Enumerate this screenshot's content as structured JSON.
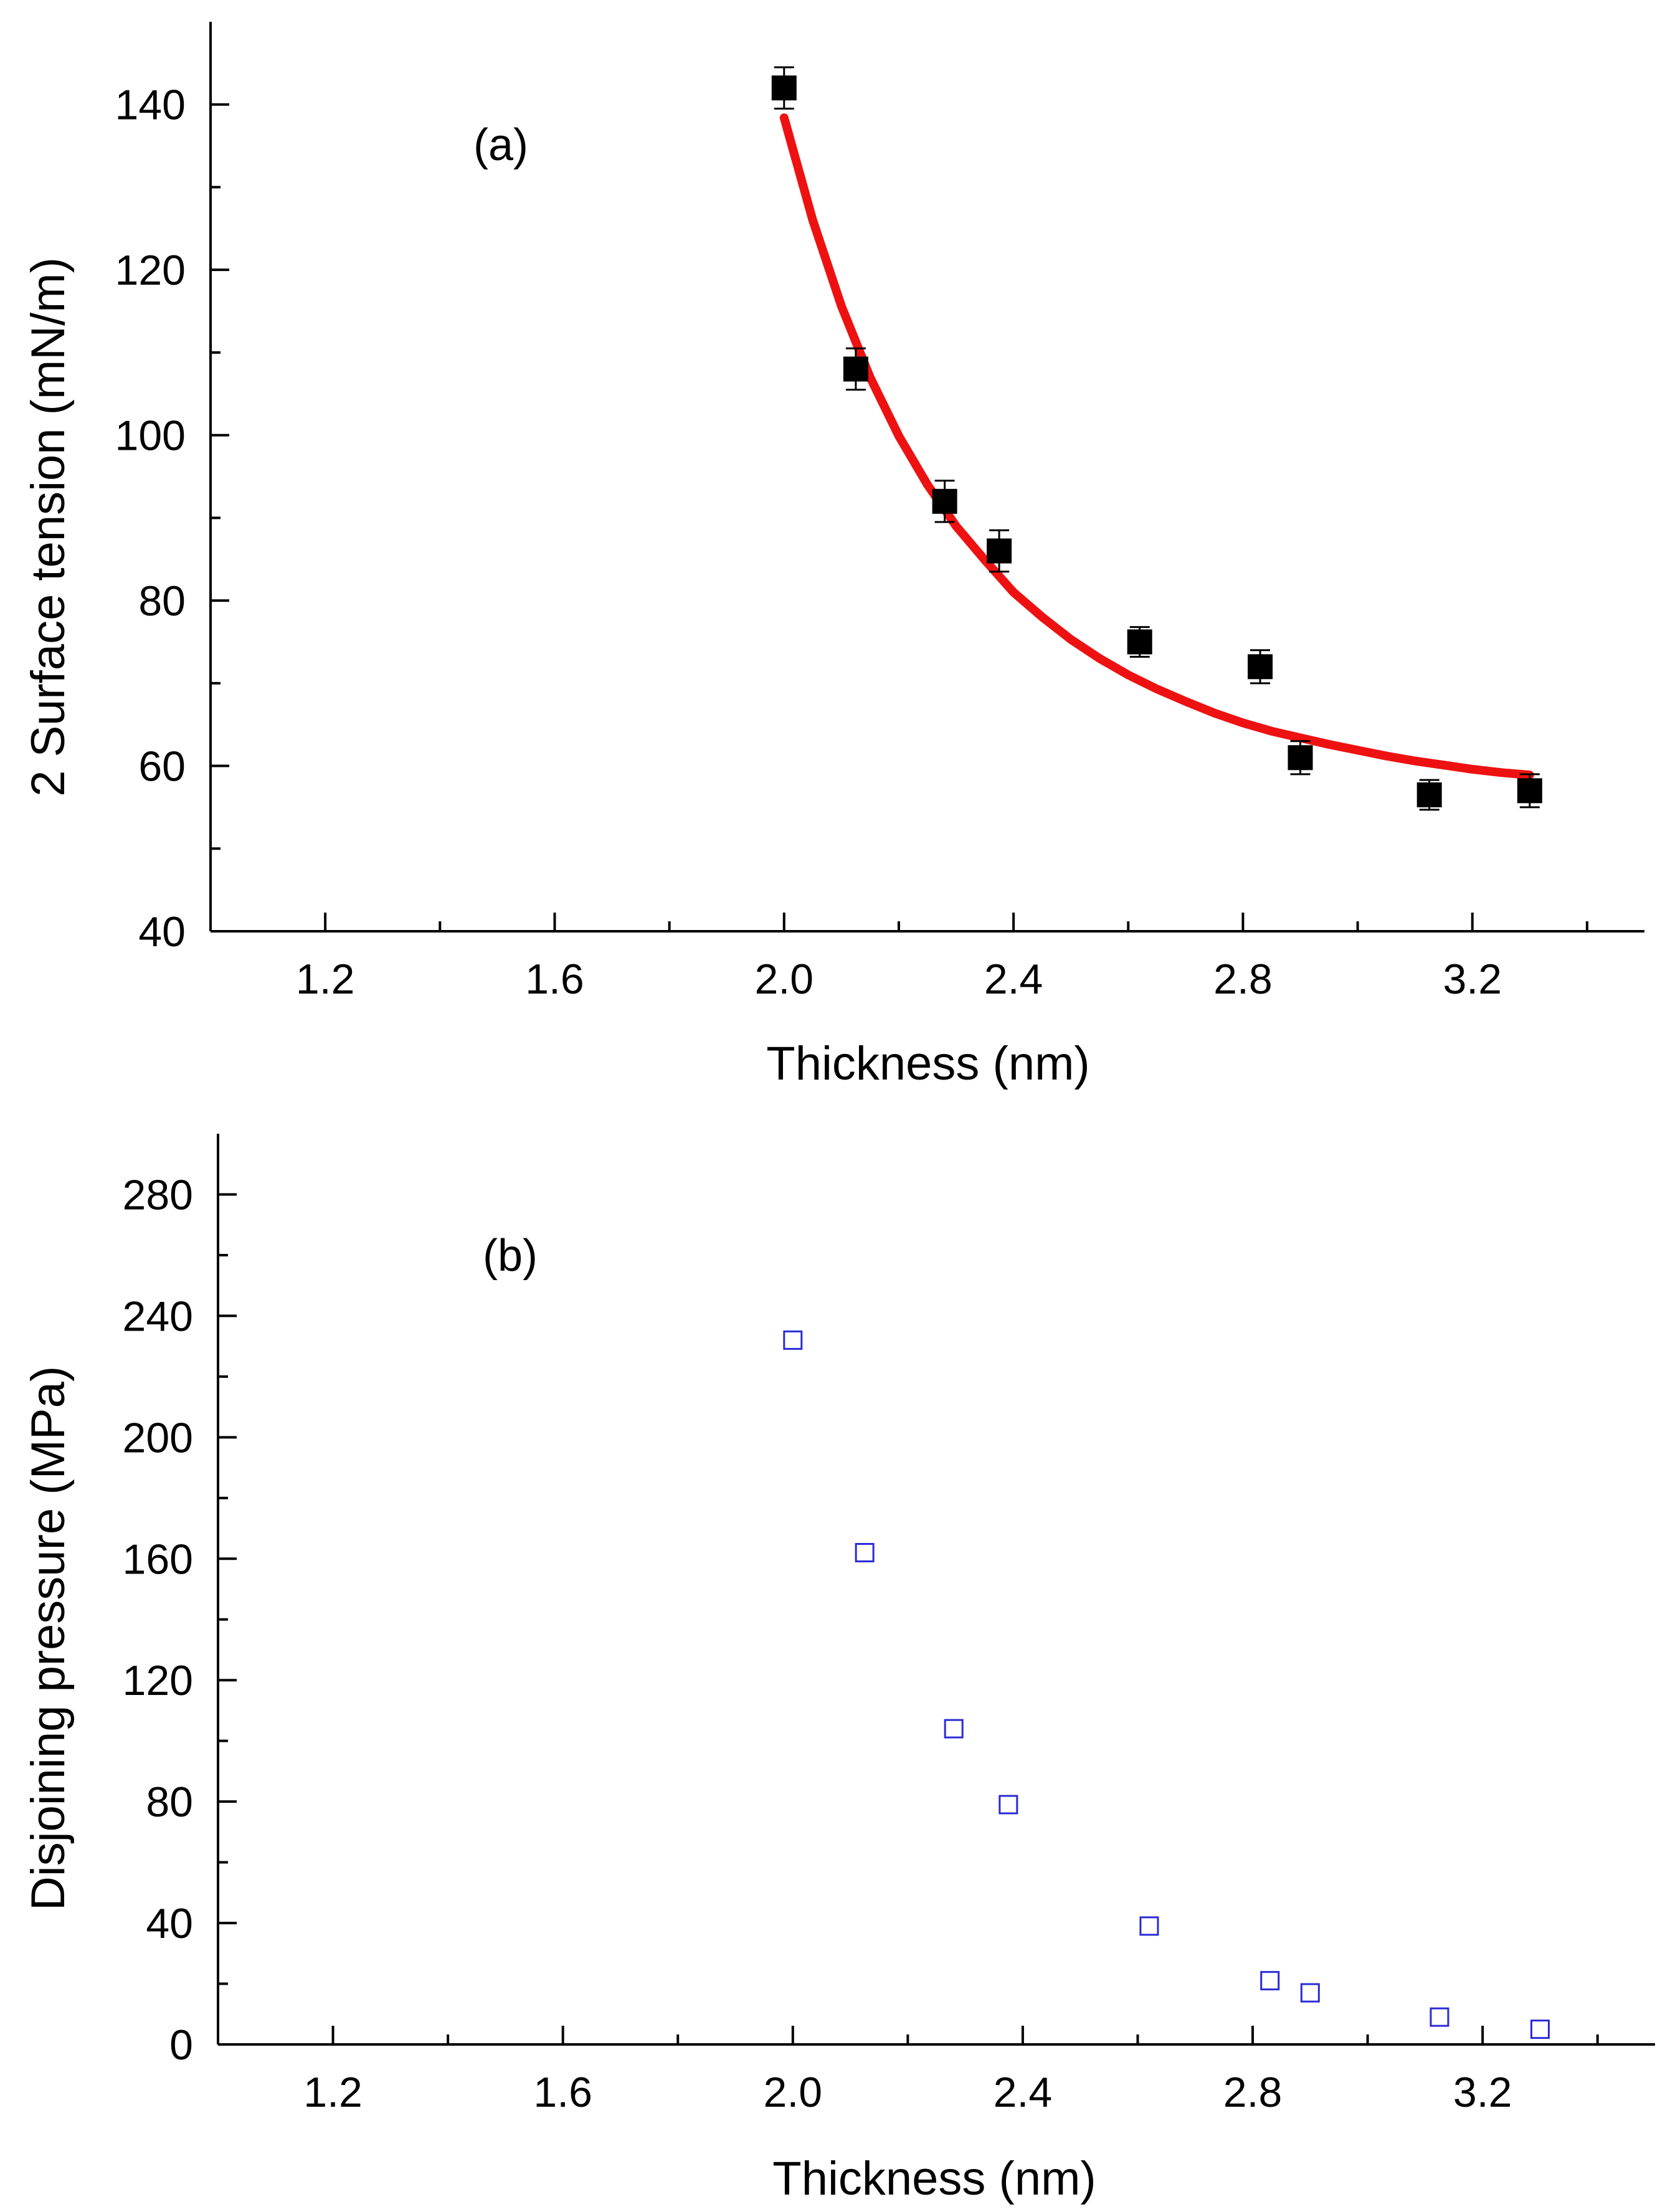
{
  "chart_data": [
    {
      "type": "scatter",
      "panel_label": "(a)",
      "xlabel": "Thickness (nm)",
      "ylabel": "2 Surface tension (mN/m)",
      "xlim": [
        1.0,
        3.5
      ],
      "ylim": [
        40,
        150
      ],
      "xticks": [
        1.2,
        1.6,
        2.0,
        2.4,
        2.8,
        3.2
      ],
      "xtick_labels": [
        "1.2",
        "1.6",
        "2.0",
        "2.4",
        "2.8",
        "3.2"
      ],
      "yticks": [
        40,
        60,
        80,
        100,
        120,
        140
      ],
      "ytick_labels": [
        "40",
        "60",
        "80",
        "100",
        "120",
        "140"
      ],
      "marker": "filled-square",
      "marker_color": "#000000",
      "x": [
        2.0,
        2.125,
        2.28,
        2.375,
        2.62,
        2.83,
        2.9,
        3.125,
        3.3
      ],
      "y": [
        142,
        108,
        92,
        86,
        75,
        72,
        61,
        56.5,
        57
      ],
      "yerr": [
        2.5,
        2.5,
        2.5,
        2.5,
        1.8,
        2.0,
        2.0,
        1.8,
        2.0
      ],
      "fit": {
        "color": "#ee1111",
        "x": [
          2.0,
          2.05,
          2.1,
          2.15,
          2.2,
          2.25,
          2.3,
          2.35,
          2.4,
          2.45,
          2.5,
          2.55,
          2.6,
          2.65,
          2.7,
          2.75,
          2.8,
          2.85,
          2.9,
          2.95,
          3.0,
          3.05,
          3.1,
          3.15,
          3.2,
          3.25,
          3.3
        ],
        "y": [
          138.4,
          126.0,
          115.6,
          107.0,
          99.9,
          94.0,
          89.0,
          84.9,
          81.0,
          78.0,
          75.3,
          73.0,
          71.0,
          69.3,
          67.8,
          66.4,
          65.2,
          64.2,
          63.4,
          62.6,
          61.9,
          61.2,
          60.6,
          60.1,
          59.6,
          59.2,
          58.9
        ]
      }
    },
    {
      "type": "scatter",
      "panel_label": "(b)",
      "xlabel": "Thickness (nm)",
      "ylabel": "Disjoining pressure (MPa)",
      "xlim": [
        1.0,
        3.5
      ],
      "ylim": [
        0,
        300
      ],
      "xticks": [
        1.2,
        1.6,
        2.0,
        2.4,
        2.8,
        3.2
      ],
      "xtick_labels": [
        "1.2",
        "1.6",
        "2.0",
        "2.4",
        "2.8",
        "3.2"
      ],
      "yticks": [
        0,
        40,
        80,
        120,
        160,
        200,
        240,
        280
      ],
      "ytick_labels": [
        "0",
        "40",
        "80",
        "120",
        "160",
        "200",
        "240",
        "280"
      ],
      "marker": "open-square",
      "marker_color": "#2a2ad6",
      "x": [
        2.0,
        2.125,
        2.28,
        2.375,
        2.62,
        2.83,
        2.9,
        3.125,
        3.3
      ],
      "y": [
        232,
        162,
        104,
        79,
        39,
        21,
        17,
        9,
        5
      ]
    }
  ]
}
